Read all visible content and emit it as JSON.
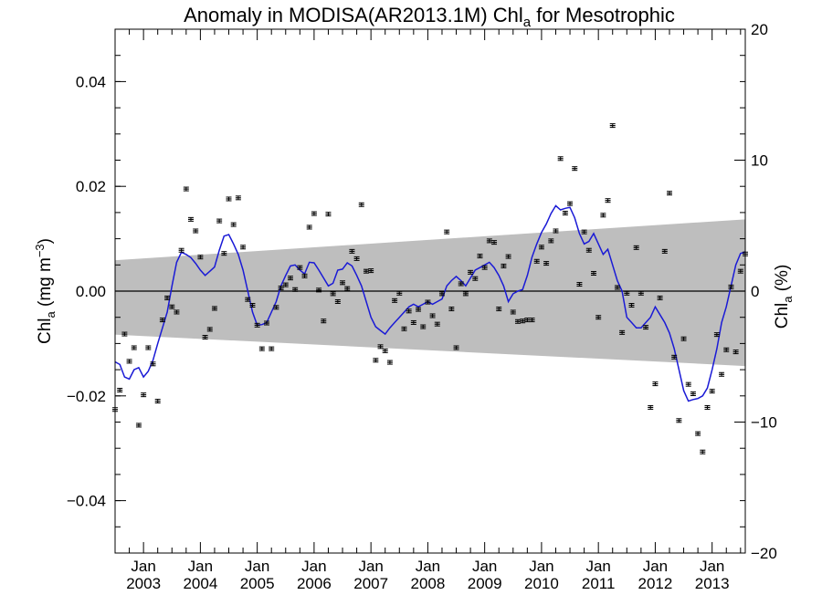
{
  "chart_data": {
    "type": "scatter",
    "title": "Anomaly in MODISA(AR2013.1M) Chl",
    "title_subscript": "a",
    "title_suffix": " for Mesotrophic",
    "ylabel_left": {
      "main": "Chl",
      "sub": "a",
      "units": " (mg m",
      "sup": "−3",
      "close": ")"
    },
    "ylabel_right": {
      "main": "Chl",
      "sub": "a",
      "units": " (%)"
    },
    "ylim_left": [
      -0.05,
      0.05
    ],
    "ylim_right": [
      -20,
      20
    ],
    "y_ticks_left": [
      "0.04",
      "0.02",
      "0.00",
      "−0.02",
      "−0.04"
    ],
    "y_ticks_right": [
      "20",
      "10",
      "0",
      "−10",
      "−20"
    ],
    "xlim": [
      "2002-07",
      "2013-08"
    ],
    "x_ticks": [
      {
        "month": "Jan",
        "year": "2003"
      },
      {
        "month": "Jan",
        "year": "2004"
      },
      {
        "month": "Jan",
        "year": "2005"
      },
      {
        "month": "Jan",
        "year": "2006"
      },
      {
        "month": "Jan",
        "year": "2007"
      },
      {
        "month": "Jan",
        "year": "2008"
      },
      {
        "month": "Jan",
        "year": "2009"
      },
      {
        "month": "Jan",
        "year": "2010"
      },
      {
        "month": "Jan",
        "year": "2011"
      },
      {
        "month": "Jan",
        "year": "2012"
      },
      {
        "month": "Jan",
        "year": "2013"
      }
    ],
    "zero_line": 0,
    "uncertainty_band": {
      "color": "#bebebe",
      "start": {
        "date": "2002-07",
        "upper": 0.0059,
        "lower": -0.0083
      },
      "end": {
        "date": "2013-08",
        "upper": 0.0137,
        "lower": -0.0143
      }
    },
    "series": [
      {
        "kind": "monthly_points_with_error_bars",
        "color": "#000000",
        "x": [
          "2002-07",
          "2002-08",
          "2002-09",
          "2002-10",
          "2002-11",
          "2002-12",
          "2003-01",
          "2003-02",
          "2003-03",
          "2003-04",
          "2003-05",
          "2003-06",
          "2003-07",
          "2003-08",
          "2003-09",
          "2003-10",
          "2003-11",
          "2003-12",
          "2004-01",
          "2004-02",
          "2004-03",
          "2004-04",
          "2004-05",
          "2004-06",
          "2004-07",
          "2004-08",
          "2004-09",
          "2004-10",
          "2004-11",
          "2004-12",
          "2005-01",
          "2005-02",
          "2005-03",
          "2005-04",
          "2005-05",
          "2005-06",
          "2005-07",
          "2005-08",
          "2005-09",
          "2005-10",
          "2005-11",
          "2005-12",
          "2006-01",
          "2006-02",
          "2006-03",
          "2006-04",
          "2006-05",
          "2006-06",
          "2006-07",
          "2006-08",
          "2006-09",
          "2006-10",
          "2006-11",
          "2006-12",
          "2007-01",
          "2007-02",
          "2007-03",
          "2007-04",
          "2007-05",
          "2007-06",
          "2007-07",
          "2007-08",
          "2007-09",
          "2007-10",
          "2007-11",
          "2007-12",
          "2008-01",
          "2008-02",
          "2008-03",
          "2008-04",
          "2008-05",
          "2008-06",
          "2008-07",
          "2008-08",
          "2008-09",
          "2008-10",
          "2008-11",
          "2008-12",
          "2009-01",
          "2009-02",
          "2009-03",
          "2009-04",
          "2009-05",
          "2009-06",
          "2009-07",
          "2009-08",
          "2009-09",
          "2009-10",
          "2009-11",
          "2009-12",
          "2010-01",
          "2010-02",
          "2010-03",
          "2010-04",
          "2010-05",
          "2010-06",
          "2010-07",
          "2010-08",
          "2010-09",
          "2010-10",
          "2010-11",
          "2010-12",
          "2011-01",
          "2011-02",
          "2011-03",
          "2011-04",
          "2011-05",
          "2011-06",
          "2011-07",
          "2011-08",
          "2011-09",
          "2011-10",
          "2011-11",
          "2011-12",
          "2012-01",
          "2012-02",
          "2012-03",
          "2012-04",
          "2012-05",
          "2012-06",
          "2012-07",
          "2012-08",
          "2012-09",
          "2012-10",
          "2012-11",
          "2012-12",
          "2013-01",
          "2013-02",
          "2013-03",
          "2013-04",
          "2013-05",
          "2013-06",
          "2013-07",
          "2013-08"
        ],
        "values": [
          -0.0226,
          -0.0189,
          -0.0082,
          -0.0134,
          -0.0108,
          -0.0256,
          -0.0198,
          -0.0108,
          -0.0139,
          -0.021,
          -0.0055,
          -0.0013,
          -0.003,
          -0.004,
          0.0078,
          0.0195,
          0.0137,
          0.0115,
          0.0065,
          -0.0088,
          -0.0073,
          -0.0033,
          0.0134,
          0.0072,
          0.0176,
          0.0127,
          0.0178,
          0.0084,
          -0.0016,
          -0.0027,
          -0.0065,
          -0.011,
          -0.0061,
          -0.011,
          -0.0031,
          0.0006,
          0.0012,
          0.0025,
          0.0003,
          0.0045,
          0.0029,
          0.0122,
          0.0148,
          0.0002,
          -0.0057,
          0.0147,
          -0.0005,
          -0.002,
          0.0016,
          0.0005,
          0.0076,
          0.0062,
          0.0165,
          0.0038,
          0.0039,
          -0.0132,
          -0.0106,
          -0.0114,
          -0.0136,
          -0.0018,
          -0.0004,
          -0.0072,
          -0.0038,
          -0.006,
          -0.0035,
          -0.0068,
          -0.0021,
          -0.0047,
          -0.0063,
          -0.0005,
          0.0113,
          -0.0034,
          -0.0108,
          0.0014,
          -0.0005,
          0.0036,
          0.0024,
          0.0067,
          0.0045,
          0.0096,
          0.0093,
          -0.0034,
          0.0048,
          0.0066,
          -0.004,
          -0.0058,
          -0.0057,
          -0.0055,
          -0.0055,
          0.0057,
          0.0084,
          0.0053,
          0.0096,
          0.0115,
          0.0253,
          0.0149,
          0.0167,
          0.0234,
          0.0013,
          0.0113,
          0.0078,
          0.0034,
          -0.005,
          0.0145,
          0.0173,
          0.0316,
          0.0007,
          -0.0079,
          -0.0004,
          -0.0027,
          0.0083,
          -0.0004,
          -0.0069,
          -0.0222,
          -0.0177,
          -0.0013,
          0.0076,
          0.0187,
          -0.0126,
          -0.0247,
          -0.0091,
          -0.0178,
          -0.0196,
          -0.0272,
          -0.0307,
          -0.0222,
          -0.0191,
          -0.0083,
          -0.0159,
          -0.0112,
          0.0008,
          -0.0116,
          0.0038,
          0.0071
        ]
      },
      {
        "kind": "running_mean_line",
        "color": "#1a1ad6",
        "x": [
          "2002-07",
          "2002-08",
          "2002-09",
          "2002-10",
          "2002-11",
          "2002-12",
          "2003-01",
          "2003-02",
          "2003-03",
          "2003-04",
          "2003-05",
          "2003-06",
          "2003-07",
          "2003-08",
          "2003-09",
          "2003-10",
          "2003-11",
          "2003-12",
          "2004-01",
          "2004-02",
          "2004-03",
          "2004-04",
          "2004-05",
          "2004-06",
          "2004-07",
          "2004-08",
          "2004-09",
          "2004-10",
          "2004-11",
          "2004-12",
          "2005-01",
          "2005-02",
          "2005-03",
          "2005-04",
          "2005-05",
          "2005-06",
          "2005-07",
          "2005-08",
          "2005-09",
          "2005-10",
          "2005-11",
          "2005-12",
          "2006-01",
          "2006-02",
          "2006-03",
          "2006-04",
          "2006-05",
          "2006-06",
          "2006-07",
          "2006-08",
          "2006-09",
          "2006-10",
          "2006-11",
          "2006-12",
          "2007-01",
          "2007-02",
          "2007-03",
          "2007-04",
          "2007-05",
          "2007-06",
          "2007-07",
          "2007-08",
          "2007-09",
          "2007-10",
          "2007-11",
          "2007-12",
          "2008-01",
          "2008-02",
          "2008-03",
          "2008-04",
          "2008-05",
          "2008-06",
          "2008-07",
          "2008-08",
          "2008-09",
          "2008-10",
          "2008-11",
          "2008-12",
          "2009-01",
          "2009-02",
          "2009-03",
          "2009-04",
          "2009-05",
          "2009-06",
          "2009-07",
          "2009-08",
          "2009-09",
          "2009-10",
          "2009-11",
          "2009-12",
          "2010-01",
          "2010-02",
          "2010-03",
          "2010-04",
          "2010-05",
          "2010-06",
          "2010-07",
          "2010-08",
          "2010-09",
          "2010-10",
          "2010-11",
          "2010-12",
          "2011-01",
          "2011-02",
          "2011-03",
          "2011-04",
          "2011-05",
          "2011-06",
          "2011-07",
          "2011-08",
          "2011-09",
          "2011-10",
          "2011-11",
          "2011-12",
          "2012-01",
          "2012-02",
          "2012-03",
          "2012-04",
          "2012-05",
          "2012-06",
          "2012-07",
          "2012-08",
          "2012-09",
          "2012-10",
          "2012-11",
          "2012-12",
          "2013-01",
          "2013-02",
          "2013-03",
          "2013-04",
          "2013-05",
          "2013-06",
          "2013-07",
          "2013-08"
        ],
        "values": [
          -0.0135,
          -0.014,
          -0.0164,
          -0.0168,
          -0.015,
          -0.0146,
          -0.0164,
          -0.0153,
          -0.0132,
          -0.01,
          -0.007,
          -0.004,
          0.001,
          0.0055,
          0.0074,
          0.007,
          0.0064,
          0.0053,
          0.004,
          0.003,
          0.0038,
          0.0046,
          0.0078,
          0.0105,
          0.0108,
          0.009,
          0.007,
          0.004,
          0.0,
          -0.004,
          -0.0065,
          -0.0064,
          -0.006,
          -0.004,
          -0.002,
          0.001,
          0.003,
          0.0048,
          0.005,
          0.004,
          0.0033,
          0.0055,
          0.0054,
          0.004,
          0.0025,
          0.001,
          0.0015,
          0.004,
          0.0042,
          0.0054,
          0.0048,
          0.003,
          0.001,
          -0.002,
          -0.005,
          -0.0068,
          -0.0075,
          -0.0082,
          -0.007,
          -0.006,
          -0.005,
          -0.004,
          -0.003,
          -0.0025,
          -0.003,
          -0.0025,
          -0.002,
          -0.0025,
          -0.002,
          -0.0015,
          0.001,
          0.002,
          0.0028,
          0.002,
          0.001,
          0.0025,
          0.004,
          0.0045,
          0.005,
          0.0055,
          0.0045,
          0.003,
          0.001,
          -0.002,
          -0.0005,
          0.0,
          0.0003,
          0.003,
          0.0065,
          0.009,
          0.0112,
          0.0128,
          0.0148,
          0.0163,
          0.0155,
          0.0158,
          0.016,
          0.014,
          0.011,
          0.009,
          0.0095,
          0.011,
          0.009,
          0.007,
          0.008,
          0.005,
          0.002,
          0.0,
          -0.005,
          -0.006,
          -0.007,
          -0.007,
          -0.006,
          -0.005,
          -0.003,
          -0.0045,
          -0.006,
          -0.008,
          -0.011,
          -0.015,
          -0.019,
          -0.021,
          -0.0207,
          -0.0205,
          -0.02,
          -0.0185,
          -0.015,
          -0.011,
          -0.006,
          -0.003,
          0.001,
          0.005,
          0.0072,
          0.0075
        ]
      }
    ],
    "grid": false,
    "legend": "none"
  }
}
